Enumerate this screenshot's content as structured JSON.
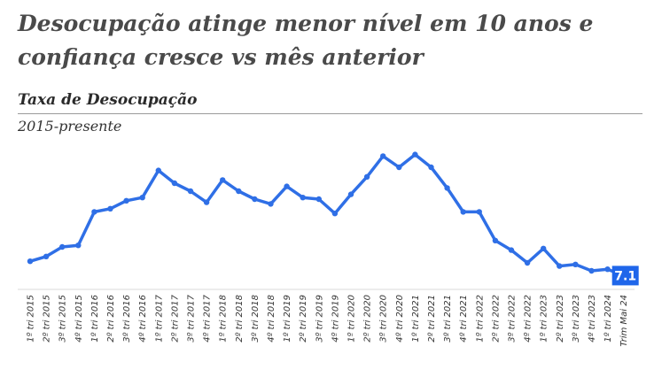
{
  "headline": "Desocupação atinge menor nível em 10 anos e confiança cresce vs mês anterior",
  "chart_data": {
    "type": "line",
    "title": "Taxa de Desocupação",
    "subtitle": "2015-presente",
    "categories": [
      "1º tri 2015",
      "2º tri 2015",
      "3º tri 2015",
      "4º tri 2015",
      "1º tri 2016",
      "2º tri 2016",
      "3º tri 2016",
      "4º tri 2016",
      "1º tri 2017",
      "2º tri 2017",
      "3º tri 2017",
      "4º tri 2017",
      "1º tri 2018",
      "2º tri 2018",
      "3º tri 2018",
      "4º tri 2018",
      "1º tri 2019",
      "2º tri 2019",
      "3º tri 2019",
      "4º tri 2019",
      "1º tri 2020",
      "2º tri 2020",
      "3º tri 2020",
      "4º tri 2020",
      "1º tri 2021",
      "2º tri 2021",
      "3º tri 2021",
      "4º tri 2021",
      "1º tri 2022",
      "2º tri 2022",
      "3º tri 2022",
      "4º tri 2022",
      "1º tri 2023",
      "2º tri 2023",
      "3º tri 2023",
      "4º tri 2023",
      "1º tri 2024",
      "Trim Mai 24"
    ],
    "values": [
      8.0,
      8.3,
      8.9,
      9.0,
      11.1,
      11.3,
      11.8,
      12.0,
      13.7,
      12.9,
      12.4,
      11.7,
      13.1,
      12.4,
      11.9,
      11.6,
      12.7,
      12.0,
      11.9,
      11.0,
      12.2,
      13.3,
      14.6,
      13.9,
      14.7,
      13.9,
      12.6,
      11.1,
      11.1,
      9.3,
      8.7,
      7.9,
      8.8,
      7.7,
      7.8,
      7.4,
      7.5,
      7.1
    ],
    "end_label": "7.1",
    "ylim": [
      6.4,
      15.4
    ],
    "grid": false,
    "colors": {
      "line": "#2f6fe6",
      "label_bg": "#1f66ea"
    }
  }
}
